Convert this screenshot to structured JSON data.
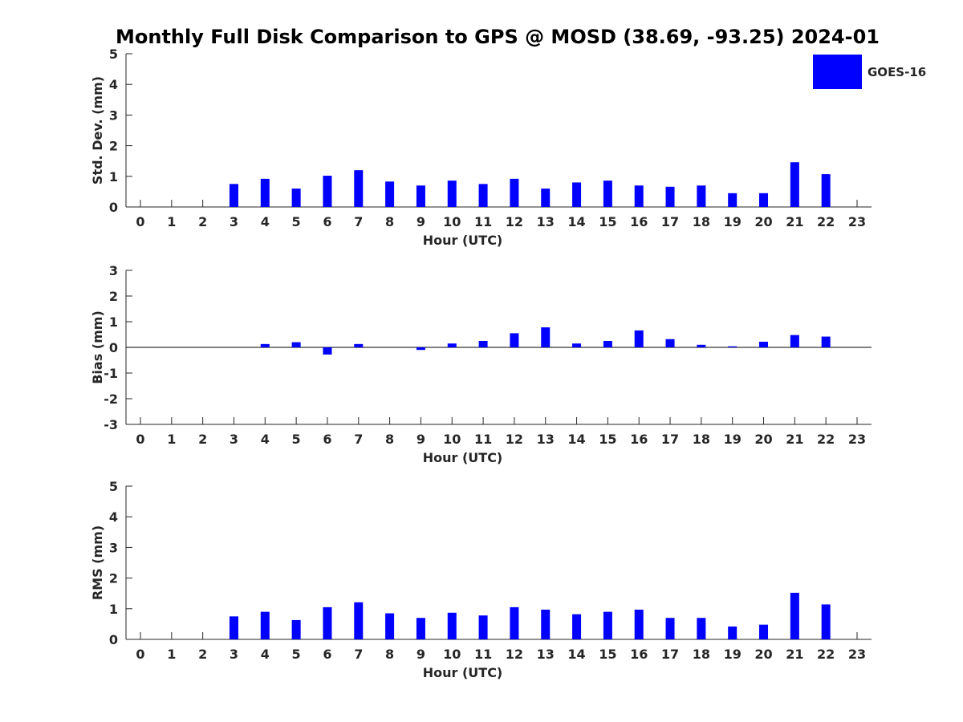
{
  "title": "Monthly Full Disk Comparison to GPS @ MOSD (38.69, -93.25) 2024-01",
  "legend": {
    "label": "GOES-16",
    "color": "#0000ff",
    "position": "top-right"
  },
  "chart_data": [
    {
      "type": "bar",
      "name": "std-dev",
      "xlabel": "Hour (UTC)",
      "ylabel": "Std. Dev. (mm)",
      "ylim": [
        0,
        5
      ],
      "yticks": [
        "0",
        "1",
        "2",
        "3",
        "4",
        "5"
      ],
      "yticks_values": [
        0,
        1,
        2,
        3,
        4,
        5
      ],
      "categories": [
        "0",
        "1",
        "2",
        "3",
        "4",
        "5",
        "6",
        "7",
        "8",
        "9",
        "10",
        "11",
        "12",
        "13",
        "14",
        "15",
        "16",
        "17",
        "18",
        "19",
        "20",
        "21",
        "22",
        "23"
      ],
      "series": [
        {
          "name": "GOES-16",
          "color": "#0000ff",
          "values": [
            null,
            null,
            null,
            0.75,
            0.92,
            0.6,
            1.02,
            1.2,
            0.83,
            0.7,
            0.86,
            0.75,
            0.92,
            0.6,
            0.8,
            0.86,
            0.7,
            0.66,
            0.7,
            0.45,
            0.45,
            1.46,
            1.07,
            null
          ]
        }
      ]
    },
    {
      "type": "bar",
      "name": "bias",
      "xlabel": "Hour (UTC)",
      "ylabel": "Bias (mm)",
      "ylim": [
        -3,
        3
      ],
      "yticks": [
        "-3",
        "-2",
        "-1",
        "0",
        "1",
        "2",
        "3"
      ],
      "yticks_values": [
        -3,
        -2,
        -1,
        0,
        1,
        2,
        3
      ],
      "zero_line": true,
      "categories": [
        "0",
        "1",
        "2",
        "3",
        "4",
        "5",
        "6",
        "7",
        "8",
        "9",
        "10",
        "11",
        "12",
        "13",
        "14",
        "15",
        "16",
        "17",
        "18",
        "19",
        "20",
        "21",
        "22",
        "23"
      ],
      "series": [
        {
          "name": "GOES-16",
          "color": "#0000ff",
          "values": [
            null,
            null,
            null,
            0.0,
            0.13,
            0.2,
            -0.28,
            0.13,
            0.0,
            -0.1,
            0.15,
            0.25,
            0.55,
            0.78,
            0.15,
            0.25,
            0.66,
            0.32,
            0.1,
            0.04,
            0.22,
            0.48,
            0.42,
            null
          ]
        }
      ]
    },
    {
      "type": "bar",
      "name": "rms",
      "xlabel": "Hour (UTC)",
      "ylabel": "RMS (mm)",
      "ylim": [
        0,
        5
      ],
      "yticks": [
        "0",
        "1",
        "2",
        "3",
        "4",
        "5"
      ],
      "yticks_values": [
        0,
        1,
        2,
        3,
        4,
        5
      ],
      "categories": [
        "0",
        "1",
        "2",
        "3",
        "4",
        "5",
        "6",
        "7",
        "8",
        "9",
        "10",
        "11",
        "12",
        "13",
        "14",
        "15",
        "16",
        "17",
        "18",
        "19",
        "20",
        "21",
        "22",
        "23"
      ],
      "series": [
        {
          "name": "GOES-16",
          "color": "#0000ff",
          "values": [
            null,
            null,
            null,
            0.75,
            0.9,
            0.63,
            1.05,
            1.21,
            0.85,
            0.7,
            0.87,
            0.78,
            1.05,
            0.97,
            0.82,
            0.9,
            0.97,
            0.7,
            0.7,
            0.42,
            0.48,
            1.52,
            1.14,
            null
          ]
        }
      ]
    }
  ]
}
